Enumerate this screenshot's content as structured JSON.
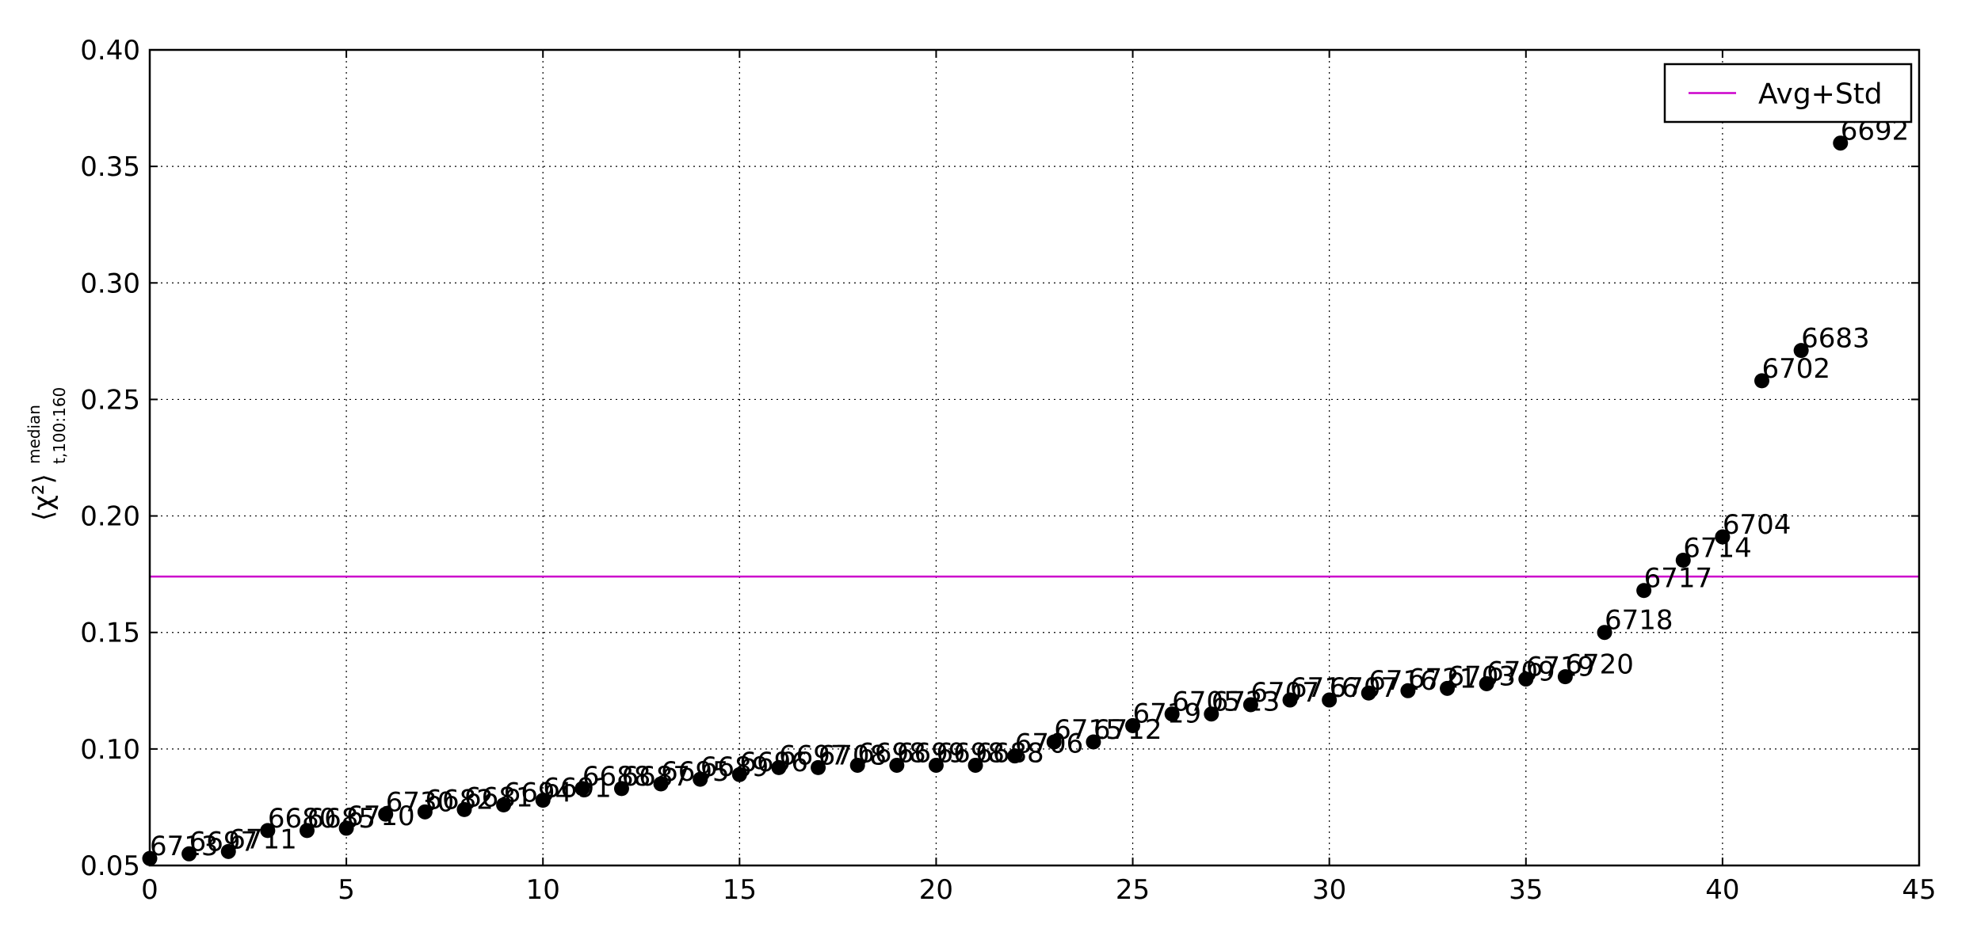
{
  "chart_data": {
    "type": "scatter",
    "title": "",
    "xlabel": "",
    "ylabel": "⟨χ²⟩",
    "ylabel_sup": "median",
    "ylabel_sub": "t,100:160",
    "xlim": [
      0,
      45
    ],
    "ylim": [
      0.05,
      0.4
    ],
    "x_ticks": [
      0,
      5,
      10,
      15,
      20,
      25,
      30,
      35,
      40,
      45
    ],
    "x_tick_labels": [
      "0",
      "5",
      "10",
      "15",
      "20",
      "25",
      "30",
      "35",
      "40",
      "45"
    ],
    "y_ticks": [
      0.05,
      0.1,
      0.15,
      0.2,
      0.25,
      0.3,
      0.35,
      0.4
    ],
    "y_tick_labels": [
      "0.05",
      "0.10",
      "0.15",
      "0.20",
      "0.25",
      "0.30",
      "0.35",
      "0.40"
    ],
    "grid": true,
    "legend_position": "top-right",
    "series": [
      {
        "name": "",
        "color": "#000000",
        "x": [
          0,
          1,
          2,
          3,
          4,
          5,
          6,
          7,
          8,
          9,
          10,
          11,
          12,
          13,
          14,
          15,
          16,
          17,
          18,
          19,
          20,
          21,
          22,
          23,
          24,
          25,
          26,
          27,
          28,
          29,
          30,
          31,
          32,
          33,
          34,
          35,
          36,
          37,
          38,
          39,
          40,
          41,
          42,
          43
        ],
        "y": [
          0.053,
          0.055,
          0.056,
          0.065,
          0.065,
          0.066,
          0.072,
          0.073,
          0.074,
          0.076,
          0.078,
          0.083,
          0.083,
          0.085,
          0.087,
          0.089,
          0.092,
          0.092,
          0.093,
          0.093,
          0.093,
          0.093,
          0.097,
          0.103,
          0.103,
          0.11,
          0.115,
          0.115,
          0.119,
          0.121,
          0.121,
          0.124,
          0.125,
          0.126,
          0.128,
          0.13,
          0.131,
          0.15,
          0.168,
          0.181,
          0.191,
          0.258,
          0.271,
          0.36
        ],
        "labels": [
          "6713",
          "6697",
          "6711",
          "6680",
          "6685",
          "6710",
          "6730",
          "6682",
          "6681",
          "6694",
          "6691",
          "6688",
          "6687",
          "6695",
          "6689",
          "6696",
          "6697",
          "6708",
          "6698",
          "6699",
          "6698",
          "6688",
          "6706",
          "6715",
          "6712",
          "6719",
          "6705",
          "6723",
          "6707",
          "6716",
          "6707",
          "6716",
          "6721",
          "6703",
          "6709",
          "6719",
          "6720",
          "6718",
          "6717",
          "6714",
          "6704",
          "6702",
          "6683",
          "6692"
        ]
      }
    ],
    "reference_lines": [
      {
        "name": "Avg+Std",
        "y": 0.174,
        "color": "#cc00cc"
      }
    ]
  }
}
